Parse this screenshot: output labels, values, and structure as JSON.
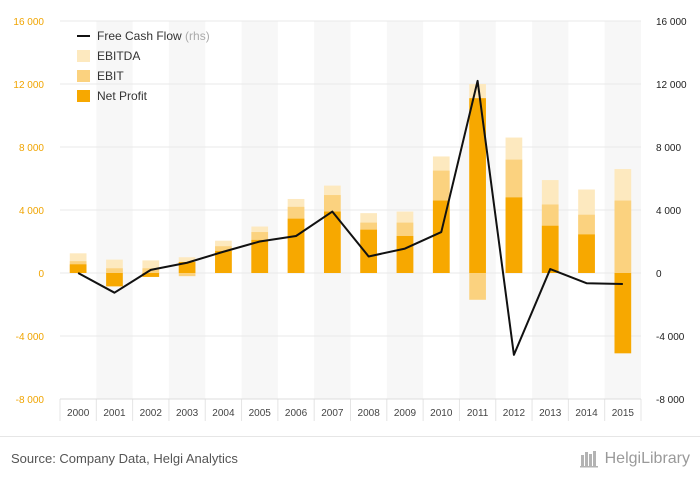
{
  "chart_data": {
    "type": "bar",
    "categories": [
      "2000",
      "2001",
      "2002",
      "2003",
      "2004",
      "2005",
      "2006",
      "2007",
      "2008",
      "2009",
      "2010",
      "2011",
      "2012",
      "2013",
      "2014",
      "2015"
    ],
    "series": [
      {
        "name": "EBITDA",
        "kind": "bar",
        "values": [
          1250,
          850,
          800,
          1000,
          2050,
          2950,
          4700,
          5550,
          3800,
          3900,
          7400,
          12000,
          8600,
          5900,
          5300,
          6600
        ]
      },
      {
        "name": "EBIT",
        "kind": "bar",
        "values": [
          750,
          300,
          300,
          -200,
          1700,
          2600,
          4200,
          4950,
          3200,
          3200,
          6500,
          -1700,
          7200,
          4350,
          3700,
          4600
        ]
      },
      {
        "name": "Net Profit",
        "kind": "bar",
        "values": [
          550,
          -850,
          -250,
          700,
          1400,
          2100,
          3450,
          3900,
          2750,
          2350,
          4600,
          11100,
          4800,
          3000,
          2450,
          -5100
        ]
      },
      {
        "name": "Free Cash Flow",
        "kind": "line",
        "axis": "right",
        "values": [
          0,
          -1250,
          200,
          650,
          1350,
          2000,
          2350,
          3900,
          1050,
          1550,
          2600,
          12200,
          -5200,
          250,
          -650,
          -700
        ]
      }
    ],
    "legend": {
      "items": [
        {
          "label": "Free Cash Flow",
          "suffix": "(rhs)",
          "color": "#111111",
          "kind": "line"
        },
        {
          "label": "EBITDA",
          "color": "#fde9bf",
          "kind": "box"
        },
        {
          "label": "EBIT",
          "color": "#fbd27f",
          "kind": "box"
        },
        {
          "label": "Net Profit",
          "color": "#f7a800",
          "kind": "box"
        }
      ],
      "placement": "top-left"
    },
    "ylim": [
      -8000,
      16000
    ],
    "y_ticks": [
      -8000,
      -4000,
      0,
      4000,
      8000,
      12000,
      16000
    ],
    "y_tick_labels": [
      "-8 000",
      "-4 000",
      "0",
      "4 000",
      "8 000",
      "12 000",
      "16 000"
    ],
    "y2lim": [
      -8000,
      16000
    ],
    "y2_tick_labels": [
      "-8 000",
      "-4 000",
      "0",
      "4 000",
      "8 000",
      "12 000",
      "16 000"
    ],
    "grid": true,
    "colors": {
      "left_axis_labels": "#f0a400",
      "right_axis_labels": "#222222",
      "gridline": "#e8e8e8",
      "category_band": "#f7f7f7",
      "line": "#111111"
    }
  },
  "footer": {
    "source": "Source: Company Data, Helgi Analytics",
    "logo_text": "HelgiLibrary",
    "logo_icon": "books-icon"
  }
}
